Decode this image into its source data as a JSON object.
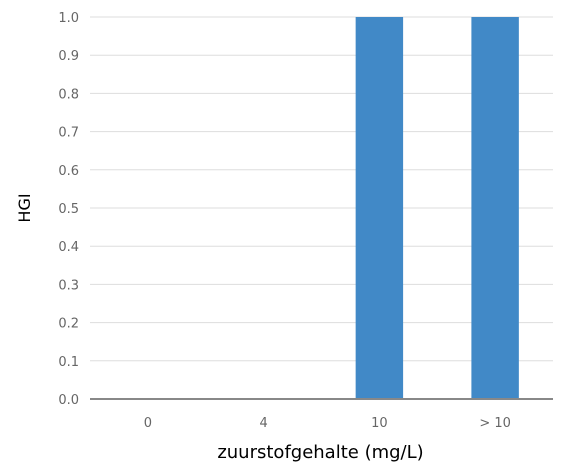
{
  "chart_data": {
    "type": "bar",
    "categories": [
      "0",
      "4",
      "10",
      "> 10"
    ],
    "values": [
      0,
      0,
      1.0,
      1.0
    ],
    "xlabel": "zuurstofgehalte (mg/L)",
    "ylabel": "HGI",
    "ylim": [
      0,
      1.0
    ],
    "yticks": [
      "0.0",
      "0.1",
      "0.2",
      "0.3",
      "0.4",
      "0.5",
      "0.6",
      "0.7",
      "0.8",
      "0.9",
      "1.0"
    ],
    "grid": true,
    "bar_color": "#4189c7"
  }
}
